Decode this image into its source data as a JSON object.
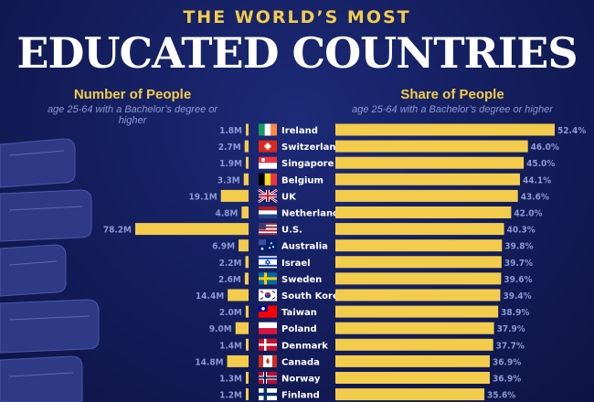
{
  "header": {
    "title_top": "THE WORLD’S MOST",
    "title_main": "EDUCATED COUNTRIES"
  },
  "left_section": {
    "heading": "Number of People",
    "subheading": "age 25-64 with a Bachelor’s degree or higher"
  },
  "right_section": {
    "heading": "Share of People",
    "subheading": "age 25-64 with a Bachelor’s degree or higher"
  },
  "colors": {
    "bar": "#f3cc4c",
    "label": "#8c98d4",
    "background": "#131d5a"
  },
  "chart_data": [
    {
      "type": "bar",
      "orientation": "horizontal",
      "title": "Number of People",
      "categories": [
        "Ireland",
        "Switzerland",
        "Singapore",
        "Belgium",
        "UK",
        "Netherlands",
        "U.S.",
        "Australia",
        "Israel",
        "Sweden",
        "South Korea",
        "Taiwan",
        "Poland",
        "Denmark",
        "Canada",
        "Norway",
        "Finland"
      ],
      "values": [
        1.8,
        2.7,
        1.9,
        3.3,
        19.1,
        4.8,
        78.2,
        6.9,
        2.2,
        2.6,
        14.4,
        2.0,
        9.0,
        1.4,
        14.8,
        1.3,
        1.2
      ],
      "labels": [
        "1.8M",
        "2.7M",
        "1.9M",
        "3.3M",
        "19.1M",
        "4.8M",
        "78.2M",
        "6.9M",
        "2.2M",
        "2.6M",
        "14.4M",
        "2.0M",
        "9.0M",
        "1.4M",
        "14.8M",
        "1.3M",
        "1.2M"
      ],
      "unit": "M"
    },
    {
      "type": "bar",
      "orientation": "horizontal",
      "title": "Share of People",
      "categories": [
        "Ireland",
        "Switzerland",
        "Singapore",
        "Belgium",
        "UK",
        "Netherlands",
        "U.S.",
        "Australia",
        "Israel",
        "Sweden",
        "South Korea",
        "Taiwan",
        "Poland",
        "Denmark",
        "Canada",
        "Norway",
        "Finland"
      ],
      "values": [
        52.4,
        46.0,
        45.0,
        44.1,
        43.6,
        42.0,
        40.3,
        39.8,
        39.7,
        39.6,
        39.4,
        38.9,
        37.9,
        37.7,
        36.9,
        36.9,
        35.6
      ],
      "labels": [
        "52.4%",
        "46.0%",
        "45.0%",
        "44.1%",
        "43.6%",
        "42.0%",
        "40.3%",
        "39.8%",
        "39.7%",
        "39.6%",
        "39.4%",
        "38.9%",
        "37.9%",
        "37.7%",
        "36.9%",
        "36.9%",
        "35.6%"
      ],
      "unit": "%"
    }
  ],
  "flags": [
    "ireland-flag",
    "switzerland-flag",
    "singapore-flag",
    "belgium-flag",
    "uk-flag",
    "netherlands-flag",
    "us-flag",
    "australia-flag",
    "israel-flag",
    "sweden-flag",
    "south-korea-flag",
    "taiwan-flag",
    "poland-flag",
    "denmark-flag",
    "canada-flag",
    "norway-flag",
    "finland-flag"
  ]
}
